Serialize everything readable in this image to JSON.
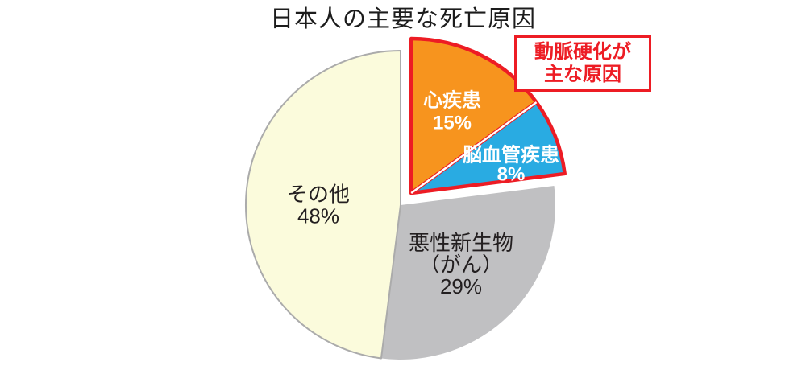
{
  "page": {
    "background": "#ffffff"
  },
  "chart_data": {
    "type": "pie",
    "title": "日本人の主要な死亡原因",
    "unit": "%",
    "direction": "clockwise",
    "start_angle_deg": 0,
    "legend": "none",
    "center": [
      497,
      255
    ],
    "radius": 192,
    "explode_distance": 20,
    "categories": [
      "心疾患",
      "脳血管疾患",
      "悪性新生物（がん）",
      "その他"
    ],
    "values": [
      15,
      8,
      29,
      48
    ],
    "slices": [
      {
        "id": "heart-disease",
        "label": "心疾患",
        "percent_label": "15%",
        "value": 15,
        "color": "#F7941E",
        "exploded": true,
        "stroke": "#ED1C24",
        "stroke_width": 4.5,
        "text_color": "#ffffff",
        "bold": true,
        "font_size": 24,
        "label_lines": [
          "心疾患",
          "15%"
        ],
        "label_pos": [
          561,
          138
        ],
        "label_line_height": 28
      },
      {
        "id": "cerebrovascular-disease",
        "label": "脳血管疾患",
        "percent_label": "8%",
        "value": 8,
        "color": "#29ABE2",
        "exploded": true,
        "stroke": "#ED1C24",
        "stroke_width": 4.5,
        "text_color": "#ffffff",
        "bold": true,
        "font_size": 24,
        "label_lines": [
          "脳血管疾患",
          "8%"
        ],
        "label_pos": [
          634,
          204
        ],
        "label_line_height": 24
      },
      {
        "id": "malignant-neoplasm-cancer",
        "label": "悪性新生物（がん）",
        "percent_label": "29%",
        "value": 29,
        "color": "#C0C0C2",
        "exploded": false,
        "stroke": "",
        "stroke_width": 0,
        "text_color": "#231F20",
        "bold": false,
        "font_size": 26,
        "label_lines": [
          "悪性新生物",
          "（がん）",
          "29%"
        ],
        "label_pos": [
          572,
          329
        ],
        "label_line_height": 27
      },
      {
        "id": "others",
        "label": "その他",
        "percent_label": "48%",
        "value": 48,
        "color": "#FBFBDC",
        "exploded": false,
        "stroke": "#ABABAB",
        "stroke_width": 2,
        "text_color": "#231F20",
        "bold": false,
        "font_size": 26,
        "label_lines": [
          "その他",
          "48%"
        ],
        "label_pos": [
          395,
          255
        ],
        "label_line_height": 27
      }
    ],
    "separator": {
      "color": "#ffffff",
      "width": 2.5
    }
  },
  "callout": {
    "lines": [
      "動脈硬化が",
      "主な原因"
    ],
    "text_color": "#ED1C24",
    "border_color": "#ED1C24"
  }
}
